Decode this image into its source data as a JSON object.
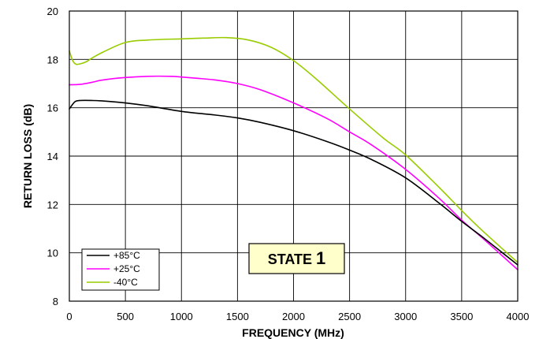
{
  "chart_data": {
    "type": "line",
    "title": "",
    "xlabel": "FREQUENCY (MHz)",
    "ylabel": "RETURN LOSS (dB)",
    "xlim": [
      0,
      4000
    ],
    "ylim": [
      8,
      20
    ],
    "xticks": [
      0,
      500,
      1000,
      1500,
      2000,
      2500,
      3000,
      3500,
      4000
    ],
    "yticks": [
      8,
      10,
      12,
      14,
      16,
      18,
      20
    ],
    "grid": true,
    "legend_position": "bottom-left",
    "annotation": {
      "label": "STATE",
      "number": "1",
      "fill": "#ffffcc"
    },
    "series": [
      {
        "name": "+85°C",
        "color": "#000000",
        "x": [
          0,
          50,
          100,
          200,
          300,
          500,
          700,
          1000,
          1300,
          1500,
          1700,
          2000,
          2300,
          2500,
          2700,
          3000,
          3300,
          3500,
          3700,
          4000
        ],
        "y": [
          15.95,
          16.25,
          16.3,
          16.3,
          16.28,
          16.2,
          16.08,
          15.85,
          15.7,
          15.58,
          15.4,
          15.05,
          14.6,
          14.25,
          13.85,
          13.1,
          12.05,
          11.3,
          10.6,
          9.5
        ]
      },
      {
        "name": "+25°C",
        "color": "#ff00ff",
        "x": [
          0,
          100,
          200,
          300,
          500,
          700,
          900,
          1000,
          1300,
          1500,
          1700,
          2000,
          2300,
          2500,
          2700,
          3000,
          3300,
          3500,
          3700,
          4000
        ],
        "y": [
          16.95,
          16.97,
          17.05,
          17.15,
          17.25,
          17.3,
          17.3,
          17.27,
          17.15,
          17.0,
          16.75,
          16.2,
          15.55,
          15.0,
          14.45,
          13.45,
          12.25,
          11.35,
          10.55,
          9.3
        ]
      },
      {
        "name": "-40°C",
        "color": "#99cc00",
        "x": [
          0,
          30,
          60,
          100,
          150,
          200,
          300,
          500,
          700,
          1000,
          1200,
          1400,
          1600,
          1800,
          2000,
          2200,
          2500,
          2800,
          3000,
          3300,
          3500,
          3700,
          4000
        ],
        "y": [
          18.35,
          17.95,
          17.8,
          17.82,
          17.9,
          18.05,
          18.3,
          18.7,
          18.8,
          18.85,
          18.88,
          18.9,
          18.8,
          18.5,
          17.95,
          17.2,
          15.95,
          14.75,
          14.05,
          12.7,
          11.75,
          10.85,
          9.6
        ]
      }
    ]
  }
}
